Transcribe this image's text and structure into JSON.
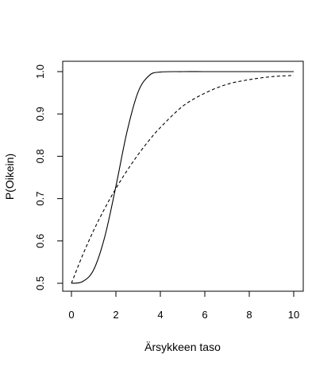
{
  "chart_data": {
    "type": "line",
    "title": "",
    "xlabel": "Ärsykkeen taso",
    "ylabel": "P(Oikein)",
    "xlim": [
      0,
      10
    ],
    "ylim": [
      0.5,
      1.0
    ],
    "xticks": [
      0,
      2,
      4,
      6,
      8,
      10
    ],
    "yticks": [
      0.5,
      0.6,
      0.7,
      0.8,
      0.9,
      1.0
    ],
    "ytick_labels": [
      "0.5",
      "0.6",
      "0.7",
      "0.8",
      "0.9",
      "1.0"
    ],
    "grid": false,
    "legend": "none",
    "series": [
      {
        "line_style": "solid",
        "color": "#000000",
        "x": [
          0,
          0.5,
          1,
          1.5,
          2,
          2.5,
          3,
          3.5,
          4,
          5,
          6,
          7,
          8,
          9,
          10
        ],
        "y": [
          0.5,
          0.504,
          0.532,
          0.61,
          0.729,
          0.858,
          0.952,
          0.991,
          0.999,
          1.0,
          1.0,
          1.0,
          1.0,
          1.0,
          1.0
        ]
      },
      {
        "line_style": "dashed",
        "color": "#000000",
        "x": [
          0,
          0.5,
          1,
          1.5,
          2,
          2.5,
          3,
          3.5,
          4,
          5,
          6,
          7,
          8,
          9,
          10
        ],
        "y": [
          0.5,
          0.566,
          0.625,
          0.677,
          0.724,
          0.766,
          0.804,
          0.838,
          0.868,
          0.918,
          0.949,
          0.97,
          0.981,
          0.988,
          0.991
        ]
      }
    ]
  }
}
